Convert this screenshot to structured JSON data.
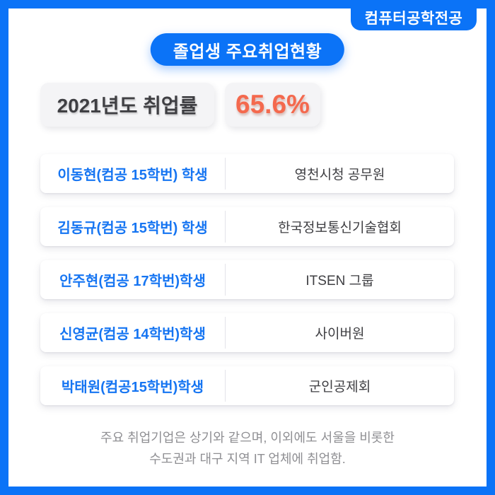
{
  "colors": {
    "accent_blue": "#0b73f7",
    "name_blue": "#1675f2",
    "coral": "#f4694e",
    "stat_box_bg": "#f4f4f6",
    "dark_text": "#3e3e42",
    "footer_gray": "#8f8f93"
  },
  "header": {
    "badge": "컴퓨터공학전공",
    "title": "졸업생 주요취업현황"
  },
  "stats": {
    "label": "2021년도 취업률",
    "value": "65.6%"
  },
  "rows": [
    {
      "student": "이동현(컴공 15학번) 학생",
      "employer": "영천시청 공무원"
    },
    {
      "student": "김동규(컴공 15학번) 학생",
      "employer": "한국정보통신기술협회"
    },
    {
      "student": "안주현(컴공 17학번)학생",
      "employer": "ITSEN 그룹"
    },
    {
      "student": "신영균(컴공 14학번)학생",
      "employer": "사이버원"
    },
    {
      "student": "박태원(컴공15학번)학생",
      "employer": "군인공제회"
    }
  ],
  "footer": {
    "line1": "주요 취업기업은 상기와 같으며, 이외에도 서울을 비롯한",
    "line2": "수도권과 대구 지역 IT 업체에 취업함."
  }
}
